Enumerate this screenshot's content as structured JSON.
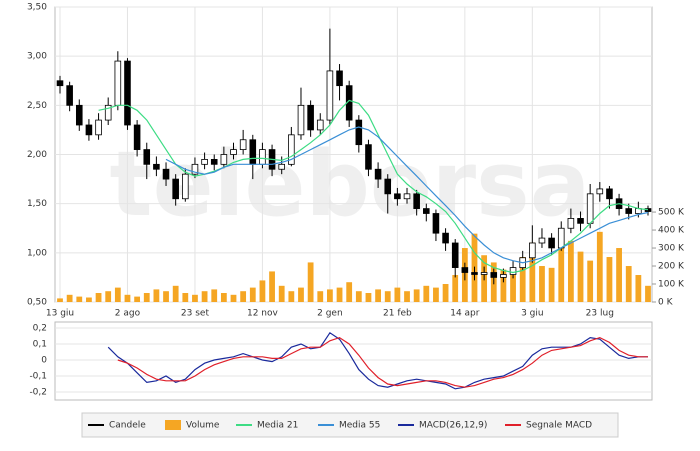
{
  "watermark": "teleborsa",
  "chart_data": [
    {
      "type": "candlestick",
      "grid": true,
      "categories": [
        "13 giu",
        null,
        null,
        null,
        null,
        null,
        null,
        "2 ago",
        null,
        null,
        null,
        null,
        null,
        null,
        "23 set",
        null,
        null,
        null,
        null,
        null,
        null,
        "12 nov",
        null,
        null,
        null,
        null,
        null,
        null,
        "2 gen",
        null,
        null,
        null,
        null,
        null,
        null,
        "21 feb",
        null,
        null,
        null,
        null,
        null,
        null,
        "14 apr",
        null,
        null,
        null,
        null,
        null,
        null,
        "3 giu",
        null,
        null,
        null,
        null,
        null,
        null,
        "23 lug",
        null,
        null,
        null,
        null,
        null
      ],
      "ylim": [
        0.5,
        3.5
      ],
      "yticks": [
        {
          "value": 0.5,
          "label": "0,50"
        },
        {
          "value": 1,
          "label": "1,00"
        },
        {
          "value": 1.5,
          "label": "1,50"
        },
        {
          "value": 2,
          "label": "2,00"
        },
        {
          "value": 2.5,
          "label": "2,50"
        },
        {
          "value": 3,
          "label": "3,00"
        },
        {
          "value": 3.5,
          "label": "3,50"
        }
      ],
      "y2lim": [
        0,
        1640
      ],
      "y2ticks": [
        {
          "value": 0,
          "label": "0 K"
        },
        {
          "value": 100,
          "label": "100 K"
        },
        {
          "value": 200,
          "label": "200 K"
        },
        {
          "value": 300,
          "label": "300 K"
        },
        {
          "value": 400,
          "label": "400 K"
        },
        {
          "value": 500,
          "label": "500 K"
        }
      ],
      "series": [
        {
          "name": "Candele",
          "color": "#000000",
          "up_color": "#ffffff",
          "open": [
            2.75,
            2.7,
            2.5,
            2.3,
            2.2,
            2.35,
            2.5,
            2.95,
            2.3,
            2.05,
            1.9,
            1.85,
            1.75,
            1.55,
            1.8,
            1.9,
            1.95,
            1.9,
            2.0,
            2.05,
            2.15,
            1.9,
            2.05,
            1.85,
            1.9,
            2.2,
            2.5,
            2.25,
            2.35,
            2.85,
            2.7,
            2.35,
            2.1,
            1.85,
            1.75,
            1.6,
            1.55,
            1.6,
            1.45,
            1.4,
            1.2,
            1.1,
            0.85,
            0.8,
            0.78,
            0.8,
            0.75,
            0.78,
            0.85,
            0.95,
            1.1,
            1.15,
            1.05,
            1.25,
            1.35,
            1.3,
            1.6,
            1.65,
            1.55,
            1.45,
            1.4,
            1.45
          ],
          "high": [
            2.8,
            2.74,
            2.56,
            2.36,
            2.42,
            2.58,
            3.05,
            2.98,
            2.35,
            2.12,
            1.98,
            1.92,
            1.8,
            1.86,
            1.97,
            2.02,
            2.0,
            2.08,
            2.12,
            2.25,
            2.2,
            2.12,
            2.1,
            1.98,
            2.28,
            2.68,
            2.55,
            2.42,
            3.28,
            2.92,
            2.75,
            2.4,
            2.15,
            1.92,
            1.8,
            1.66,
            1.66,
            1.64,
            1.5,
            1.44,
            1.25,
            1.14,
            0.9,
            0.86,
            0.86,
            0.84,
            0.84,
            0.92,
            1.02,
            1.28,
            1.25,
            1.2,
            1.32,
            1.45,
            1.42,
            1.7,
            1.72,
            1.68,
            1.6,
            1.5,
            1.52,
            1.48
          ],
          "low": [
            2.62,
            2.44,
            2.24,
            2.14,
            2.15,
            2.3,
            2.45,
            2.25,
            1.98,
            1.75,
            1.78,
            1.68,
            1.48,
            1.52,
            1.76,
            1.85,
            1.84,
            1.86,
            1.95,
            2.0,
            1.75,
            1.86,
            1.78,
            1.8,
            1.88,
            2.15,
            2.18,
            2.2,
            2.3,
            2.55,
            2.28,
            2.02,
            1.78,
            1.66,
            1.4,
            1.48,
            1.5,
            1.38,
            1.32,
            1.12,
            1.02,
            0.75,
            0.72,
            0.72,
            0.72,
            0.68,
            0.7,
            0.74,
            0.82,
            0.9,
            1.05,
            0.98,
            1.02,
            1.2,
            1.22,
            1.25,
            1.52,
            1.45,
            1.38,
            1.34,
            1.36,
            1.38
          ],
          "close": [
            2.7,
            2.5,
            2.3,
            2.2,
            2.35,
            2.5,
            2.95,
            2.3,
            2.05,
            1.9,
            1.85,
            1.75,
            1.55,
            1.8,
            1.9,
            1.95,
            1.9,
            2.0,
            2.05,
            2.15,
            1.9,
            2.05,
            1.85,
            1.9,
            2.2,
            2.5,
            2.25,
            2.35,
            2.85,
            2.7,
            2.35,
            2.1,
            1.85,
            1.75,
            1.6,
            1.55,
            1.6,
            1.45,
            1.4,
            1.2,
            1.1,
            0.85,
            0.8,
            0.78,
            0.8,
            0.75,
            0.78,
            0.85,
            0.95,
            1.1,
            1.15,
            1.05,
            1.25,
            1.35,
            1.3,
            1.6,
            1.65,
            1.55,
            1.45,
            1.4,
            1.45,
            1.42
          ]
        },
        {
          "name": "Volume",
          "color": "#f5a623",
          "axis": "y2",
          "values": [
            20,
            40,
            30,
            25,
            50,
            60,
            80,
            40,
            30,
            50,
            70,
            60,
            90,
            50,
            40,
            60,
            70,
            50,
            40,
            60,
            80,
            120,
            170,
            90,
            60,
            80,
            220,
            60,
            70,
            80,
            110,
            60,
            50,
            70,
            60,
            80,
            60,
            70,
            90,
            80,
            100,
            150,
            300,
            380,
            260,
            220,
            180,
            150,
            250,
            330,
            200,
            190,
            310,
            340,
            280,
            230,
            390,
            250,
            300,
            200,
            150,
            90
          ]
        },
        {
          "name": "Media 21",
          "color": "#3ddc84",
          "values": [
            null,
            null,
            null,
            null,
            2.45,
            2.47,
            2.5,
            2.5,
            2.45,
            2.35,
            2.2,
            2.05,
            1.9,
            1.82,
            1.78,
            1.8,
            1.83,
            1.87,
            1.92,
            1.95,
            1.96,
            1.96,
            1.95,
            1.94,
            1.98,
            2.05,
            2.12,
            2.2,
            2.3,
            2.45,
            2.55,
            2.52,
            2.4,
            2.2,
            2.0,
            1.8,
            1.7,
            1.62,
            1.57,
            1.5,
            1.42,
            1.3,
            1.15,
            1.0,
            0.9,
            0.85,
            0.82,
            0.8,
            0.82,
            0.87,
            0.93,
            0.98,
            1.05,
            1.12,
            1.2,
            1.3,
            1.4,
            1.48,
            1.5,
            1.48,
            1.45,
            1.44
          ]
        },
        {
          "name": "Media 55",
          "color": "#3a8fd6",
          "values": [
            null,
            null,
            null,
            null,
            null,
            null,
            null,
            null,
            null,
            null,
            null,
            1.95,
            1.9,
            1.85,
            1.82,
            1.8,
            1.82,
            1.87,
            1.9,
            1.9,
            1.9,
            1.9,
            1.9,
            1.92,
            1.95,
            2.0,
            2.05,
            2.1,
            2.15,
            2.2,
            2.25,
            2.28,
            2.25,
            2.18,
            2.08,
            1.98,
            1.88,
            1.78,
            1.68,
            1.58,
            1.48,
            1.38,
            1.27,
            1.17,
            1.08,
            1.0,
            0.95,
            0.92,
            0.9,
            0.92,
            0.95,
            1.0,
            1.05,
            1.1,
            1.15,
            1.2,
            1.25,
            1.3,
            1.33,
            1.36,
            1.39,
            1.41
          ]
        }
      ]
    },
    {
      "type": "line",
      "grid": true,
      "ylim": [
        -0.25,
        0.2375
      ],
      "yticks": [
        {
          "value": -0.2,
          "label": "-0,2"
        },
        {
          "value": -0.1,
          "label": "-0,1"
        },
        0,
        {
          "value": 0.1,
          "label": "0,1"
        },
        {
          "value": 0.2,
          "label": "0,2"
        }
      ],
      "series": [
        {
          "name": "MACD(26,12,9)",
          "color": "#1a2a9c",
          "values": [
            null,
            null,
            null,
            null,
            null,
            0.08,
            0.02,
            -0.02,
            -0.08,
            -0.14,
            -0.13,
            -0.1,
            -0.14,
            -0.12,
            -0.06,
            -0.02,
            0,
            0.01,
            0.02,
            0.04,
            0.02,
            0,
            -0.01,
            0.02,
            0.08,
            0.1,
            0.07,
            0.08,
            0.17,
            0.13,
            0.04,
            -0.06,
            -0.12,
            -0.16,
            -0.17,
            -0.15,
            -0.13,
            -0.12,
            -0.13,
            -0.14,
            -0.15,
            -0.18,
            -0.17,
            -0.14,
            -0.12,
            -0.11,
            -0.1,
            -0.07,
            -0.04,
            0.03,
            0.07,
            0.08,
            0.08,
            0.08,
            0.1,
            0.14,
            0.13,
            0.08,
            0.03,
            0.01,
            0.02,
            0.02
          ]
        },
        {
          "name": "Segnale MACD",
          "color": "#e0202a",
          "values": [
            null,
            null,
            null,
            null,
            null,
            null,
            0,
            -0.02,
            -0.05,
            -0.09,
            -0.12,
            -0.13,
            -0.13,
            -0.13,
            -0.1,
            -0.06,
            -0.03,
            -0.01,
            0.01,
            0.02,
            0.02,
            0.02,
            0.01,
            0.01,
            0.04,
            0.07,
            0.08,
            0.08,
            0.12,
            0.14,
            0.1,
            0.03,
            -0.05,
            -0.11,
            -0.15,
            -0.16,
            -0.15,
            -0.14,
            -0.13,
            -0.13,
            -0.14,
            -0.16,
            -0.17,
            -0.16,
            -0.14,
            -0.12,
            -0.11,
            -0.09,
            -0.06,
            -0.02,
            0.03,
            0.06,
            0.07,
            0.08,
            0.09,
            0.12,
            0.14,
            0.11,
            0.06,
            0.03,
            0.02,
            0.02
          ]
        }
      ]
    }
  ]
}
